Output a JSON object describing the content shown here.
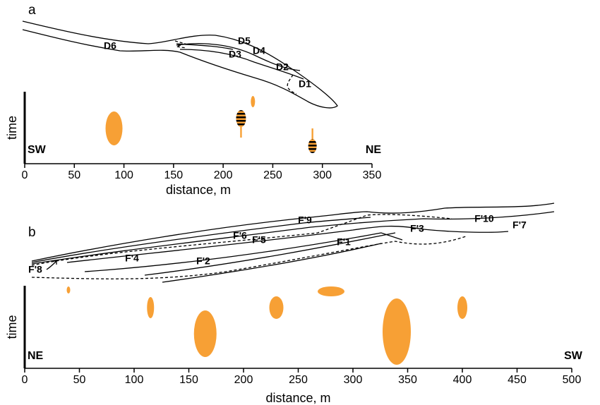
{
  "chart_data": [
    {
      "type": "timeline",
      "panel": "a",
      "xlabel": "distance, m",
      "ylabel": "time",
      "left_label": "SW",
      "right_label": "NE",
      "color": "#f7a035",
      "xlim": [
        0,
        350
      ],
      "xticks": [
        0,
        50,
        100,
        150,
        200,
        250,
        300,
        350
      ],
      "x": [
        90,
        218,
        230,
        290
      ],
      "sketch_labels": [
        "D6",
        "D5",
        "D4",
        "D3",
        "D2",
        "D1"
      ]
    },
    {
      "type": "timeline",
      "panel": "b",
      "xlabel": "distance, m",
      "ylabel": "time",
      "left_label": "NE",
      "right_label": "SW",
      "color": "#f7a035",
      "xlim": [
        0,
        500
      ],
      "xticks": [
        0,
        50,
        100,
        150,
        200,
        250,
        300,
        350,
        400,
        450,
        500
      ],
      "x": [
        40,
        115,
        165,
        230,
        280,
        340,
        400
      ],
      "sketch_labels": [
        "F'9",
        "F'6",
        "F'5",
        "F'1",
        "F'3",
        "F'10",
        "F'7",
        "F'4",
        "F'2",
        "F'8"
      ]
    }
  ]
}
